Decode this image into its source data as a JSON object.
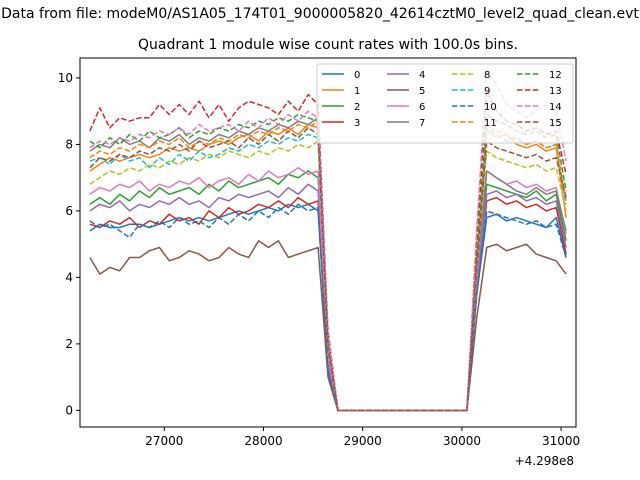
{
  "chart_data": {
    "type": "line",
    "suptitle": "Data from file: modeM0/AS1A05_174T01_9000005820_42614cztM0_level2_quad_clean.evt",
    "title": "Quadrant 1 module wise count rates with 100.0s bins.",
    "xlabel": "",
    "ylabel": "",
    "x_offset_label": "+4.298e8",
    "xlim": [
      26150,
      31150
    ],
    "ylim": [
      -0.5,
      10.6
    ],
    "x_ticks": [
      27000,
      28000,
      29000,
      30000,
      31000
    ],
    "x_tick_labels": [
      "27000",
      "28000",
      "29000",
      "30000",
      "31000"
    ],
    "y_ticks": [
      0,
      2,
      4,
      6,
      8,
      10
    ],
    "y_tick_labels": [
      "0",
      "2",
      "4",
      "6",
      "8",
      "10"
    ],
    "grid": false,
    "legend_position": "top-right",
    "legend_columns": 4,
    "x": [
      26250,
      26350,
      26450,
      26550,
      26650,
      26750,
      26850,
      26950,
      27050,
      27150,
      27250,
      27350,
      27450,
      27550,
      27650,
      27750,
      27850,
      27950,
      28050,
      28150,
      28250,
      28350,
      28450,
      28550,
      28650,
      28750,
      28850,
      28950,
      29050,
      29150,
      29250,
      29350,
      29450,
      29550,
      29650,
      29750,
      29850,
      29950,
      30050,
      30150,
      30250,
      30350,
      30450,
      30550,
      30650,
      30750,
      30850,
      30950,
      31050
    ],
    "series": [
      {
        "name": "0",
        "color": "#1f77b4",
        "dash": "solid",
        "values": [
          5.4,
          5.6,
          5.5,
          5.5,
          5.6,
          5.6,
          5.5,
          5.6,
          5.7,
          5.8,
          5.7,
          5.8,
          5.7,
          5.8,
          5.9,
          6.0,
          5.9,
          6.0,
          6.1,
          6.0,
          6.2,
          6.1,
          6.2,
          6.0,
          1.2,
          0,
          0,
          0,
          0,
          0,
          0,
          0,
          0,
          0,
          0,
          0,
          0,
          0,
          0,
          3.5,
          5.8,
          5.9,
          5.7,
          5.8,
          5.7,
          5.6,
          5.5,
          5.8,
          4.6
        ]
      },
      {
        "name": "1",
        "color": "#ff7f0e",
        "dash": "solid",
        "values": [
          7.2,
          7.4,
          7.6,
          7.5,
          7.6,
          7.7,
          7.6,
          7.7,
          7.9,
          7.8,
          7.9,
          7.8,
          8.0,
          8.1,
          8.0,
          8.2,
          8.3,
          8.1,
          8.4,
          8.3,
          8.5,
          8.3,
          8.6,
          8.5,
          2.0,
          0,
          0,
          0,
          0,
          0,
          0,
          0,
          0,
          0,
          0,
          0,
          0,
          0,
          0,
          4.5,
          8.4,
          8.2,
          8.3,
          8.0,
          7.9,
          8.0,
          7.8,
          7.9,
          5.8
        ]
      },
      {
        "name": "2",
        "color": "#2ca02c",
        "dash": "solid",
        "values": [
          6.2,
          6.4,
          6.2,
          6.5,
          6.3,
          6.6,
          6.4,
          6.7,
          6.5,
          6.6,
          6.7,
          6.5,
          6.8,
          6.6,
          6.9,
          6.7,
          6.8,
          6.9,
          7.0,
          6.8,
          7.1,
          7.0,
          7.2,
          7.0,
          1.5,
          0,
          0,
          0,
          0,
          0,
          0,
          0,
          0,
          0,
          0,
          0,
          0,
          0,
          0,
          3.8,
          6.8,
          6.7,
          6.6,
          6.5,
          6.4,
          6.6,
          6.3,
          6.5,
          5.1
        ]
      },
      {
        "name": "3",
        "color": "#d62728",
        "dash": "solid",
        "values": [
          5.6,
          5.5,
          5.7,
          5.6,
          5.8,
          5.5,
          5.7,
          5.6,
          5.9,
          5.7,
          5.8,
          5.6,
          6.0,
          5.8,
          6.1,
          5.9,
          6.0,
          6.2,
          6.1,
          6.3,
          6.1,
          6.4,
          6.2,
          6.3,
          1.3,
          0,
          0,
          0,
          0,
          0,
          0,
          0,
          0,
          0,
          0,
          0,
          0,
          0,
          0,
          3.6,
          6.3,
          6.4,
          6.2,
          6.3,
          6.1,
          6.2,
          6.0,
          6.1,
          4.7
        ]
      },
      {
        "name": "4",
        "color": "#9467bd",
        "dash": "solid",
        "values": [
          6.0,
          6.2,
          6.1,
          6.3,
          6.0,
          6.2,
          6.1,
          6.3,
          6.2,
          6.4,
          6.2,
          6.3,
          6.1,
          6.4,
          6.3,
          6.5,
          6.4,
          6.5,
          6.6,
          6.4,
          6.7,
          6.5,
          6.8,
          6.6,
          1.4,
          0,
          0,
          0,
          0,
          0,
          0,
          0,
          0,
          0,
          0,
          0,
          0,
          0,
          0,
          3.7,
          6.5,
          6.6,
          6.4,
          6.5,
          6.3,
          6.4,
          6.2,
          6.3,
          4.9
        ]
      },
      {
        "name": "5",
        "color": "#8c564b",
        "dash": "solid",
        "values": [
          4.6,
          4.1,
          4.3,
          4.2,
          4.6,
          4.6,
          4.8,
          4.9,
          4.5,
          4.6,
          4.8,
          4.7,
          4.5,
          4.6,
          4.9,
          4.7,
          4.6,
          5.1,
          4.9,
          5.1,
          4.6,
          4.7,
          4.8,
          4.9,
          1.0,
          0,
          0,
          0,
          0,
          0,
          0,
          0,
          0,
          0,
          0,
          0,
          0,
          0,
          0,
          2.8,
          4.9,
          5.0,
          4.8,
          4.9,
          5.0,
          4.7,
          4.6,
          4.5,
          4.1
        ]
      },
      {
        "name": "6",
        "color": "#e377c2",
        "dash": "solid",
        "values": [
          6.5,
          6.7,
          6.6,
          6.8,
          6.7,
          6.9,
          6.6,
          6.8,
          6.7,
          6.9,
          6.8,
          7.0,
          6.7,
          6.9,
          7.0,
          6.8,
          7.1,
          6.9,
          7.2,
          7.0,
          7.1,
          7.3,
          7.1,
          7.2,
          1.6,
          0,
          0,
          0,
          0,
          0,
          0,
          0,
          0,
          0,
          0,
          0,
          0,
          0,
          0,
          4.0,
          7.2,
          7.0,
          6.8,
          6.9,
          6.7,
          6.8,
          6.6,
          6.7,
          5.3
        ]
      },
      {
        "name": "7",
        "color": "#7f7f7f",
        "dash": "solid",
        "values": [
          7.8,
          8.0,
          7.9,
          8.2,
          8.0,
          8.1,
          7.9,
          8.2,
          8.1,
          8.3,
          8.0,
          8.2,
          8.1,
          8.3,
          8.2,
          8.4,
          8.3,
          8.5,
          8.4,
          8.6,
          8.5,
          8.7,
          8.6,
          8.8,
          2.1,
          0,
          0,
          0,
          0,
          0,
          0,
          0,
          0,
          0,
          0,
          0,
          0,
          0,
          0,
          4.2,
          7.2,
          7.0,
          6.8,
          6.6,
          6.5,
          6.7,
          6.5,
          6.6,
          5.4
        ]
      },
      {
        "name": "8",
        "color": "#bcbd22",
        "dash": "dashed",
        "values": [
          6.8,
          7.0,
          7.2,
          7.1,
          7.3,
          7.2,
          7.4,
          7.3,
          7.5,
          7.4,
          7.6,
          7.5,
          7.7,
          7.6,
          7.8,
          7.7,
          7.6,
          7.8,
          7.7,
          7.9,
          7.8,
          8.0,
          7.9,
          8.1,
          1.9,
          0,
          0,
          0,
          0,
          0,
          0,
          0,
          0,
          0,
          0,
          0,
          0,
          0,
          0,
          4.3,
          7.8,
          7.6,
          7.5,
          7.4,
          7.3,
          7.4,
          7.2,
          7.3,
          6.0
        ]
      },
      {
        "name": "9",
        "color": "#17becf",
        "dash": "dashed",
        "values": [
          7.5,
          7.6,
          7.4,
          7.7,
          7.5,
          7.6,
          7.3,
          7.6,
          7.4,
          7.7,
          7.5,
          7.8,
          7.6,
          7.7,
          7.9,
          7.8,
          8.0,
          7.9,
          8.1,
          8.0,
          8.2,
          8.1,
          8.3,
          8.2,
          1.8,
          0,
          0,
          0,
          0,
          0,
          0,
          0,
          0,
          0,
          0,
          0,
          0,
          0,
          0,
          4.4,
          8.5,
          8.3,
          8.1,
          8.2,
          8.0,
          8.1,
          7.9,
          8.0,
          6.2
        ]
      },
      {
        "name": "10",
        "color": "#1f77b4",
        "dash": "dashed",
        "values": [
          5.7,
          5.5,
          5.6,
          5.4,
          5.2,
          5.6,
          5.5,
          5.7,
          5.5,
          5.8,
          5.6,
          5.7,
          5.5,
          5.8,
          5.6,
          5.9,
          5.7,
          6.0,
          5.8,
          6.1,
          5.9,
          6.2,
          6.0,
          6.1,
          1.2,
          0,
          0,
          0,
          0,
          0,
          0,
          0,
          0,
          0,
          0,
          0,
          0,
          0,
          0,
          3.5,
          6.0,
          5.9,
          5.8,
          5.7,
          5.6,
          5.7,
          5.5,
          5.6,
          4.6
        ]
      },
      {
        "name": "11",
        "color": "#ff7f0e",
        "dash": "dashed",
        "values": [
          7.6,
          7.8,
          7.7,
          7.9,
          7.8,
          8.0,
          7.9,
          8.1,
          8.0,
          8.2,
          7.9,
          8.1,
          8.0,
          8.2,
          8.1,
          8.3,
          8.2,
          8.4,
          8.3,
          8.5,
          8.4,
          8.6,
          8.5,
          8.7,
          2.0,
          0,
          0,
          0,
          0,
          0,
          0,
          0,
          0,
          0,
          0,
          0,
          0,
          0,
          0,
          4.6,
          8.6,
          8.4,
          8.3,
          8.1,
          8.0,
          8.1,
          7.9,
          8.0,
          6.3
        ]
      },
      {
        "name": "12",
        "color": "#2ca02c",
        "dash": "dashed",
        "values": [
          8.1,
          7.9,
          8.2,
          8.0,
          8.3,
          8.1,
          8.4,
          8.2,
          8.3,
          8.5,
          8.2,
          8.4,
          8.3,
          8.5,
          8.4,
          8.6,
          8.5,
          8.7,
          8.6,
          8.8,
          8.7,
          8.9,
          8.8,
          8.7,
          2.2,
          0,
          0,
          0,
          0,
          0,
          0,
          0,
          0,
          0,
          0,
          0,
          0,
          0,
          0,
          4.8,
          8.9,
          8.7,
          8.6,
          8.4,
          8.3,
          8.4,
          8.2,
          8.3,
          6.6
        ]
      },
      {
        "name": "13",
        "color": "#d62728",
        "dash": "dashed",
        "values": [
          8.4,
          9.1,
          8.5,
          8.8,
          8.7,
          8.8,
          8.8,
          9.2,
          8.9,
          9.2,
          8.9,
          9.3,
          8.8,
          9.2,
          8.7,
          9.1,
          9.3,
          9.2,
          9.1,
          8.9,
          9.3,
          9.0,
          9.5,
          9.2,
          2.4,
          0,
          0,
          0,
          0,
          0,
          0,
          0,
          0,
          0,
          0,
          0,
          0,
          0,
          0,
          5.2,
          9.6,
          9.0,
          8.7,
          8.6,
          8.4,
          8.5,
          8.3,
          8.4,
          7.1
        ]
      },
      {
        "name": "14",
        "color": "#e377c2",
        "dash": "dashed",
        "values": [
          7.9,
          8.1,
          8.0,
          8.2,
          8.1,
          8.3,
          8.2,
          8.4,
          8.3,
          8.5,
          8.3,
          8.6,
          8.4,
          8.5,
          8.6,
          8.4,
          8.7,
          8.5,
          8.8,
          8.6,
          8.9,
          8.7,
          9.0,
          8.8,
          2.3,
          0,
          0,
          0,
          0,
          0,
          0,
          0,
          0,
          0,
          0,
          0,
          0,
          0,
          0,
          5.5,
          10.2,
          9.8,
          9.2,
          9.0,
          8.8,
          9.0,
          9.2,
          9.0,
          7.5
        ]
      },
      {
        "name": "15",
        "color": "#8c564b",
        "dash": "dashed",
        "values": [
          7.3,
          7.6,
          7.5,
          7.7,
          7.6,
          7.8,
          7.7,
          7.9,
          7.8,
          8.0,
          7.8,
          8.1,
          7.9,
          8.0,
          8.1,
          7.9,
          8.2,
          8.0,
          8.3,
          8.1,
          8.4,
          8.2,
          8.5,
          8.3,
          1.9,
          0,
          0,
          0,
          0,
          0,
          0,
          0,
          0,
          0,
          0,
          0,
          0,
          0,
          0,
          4.4,
          8.1,
          7.9,
          7.8,
          7.7,
          7.6,
          7.7,
          7.5,
          7.6,
          6.4
        ]
      }
    ]
  }
}
